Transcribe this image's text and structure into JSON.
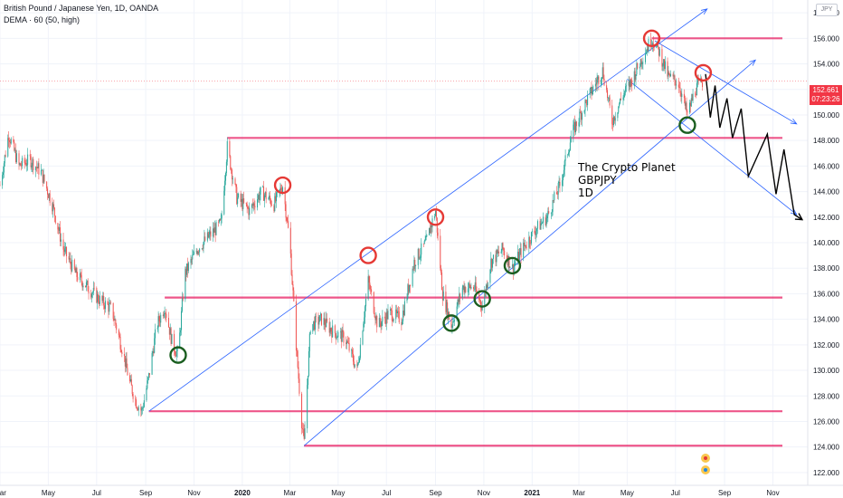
{
  "header": {
    "title": "British Pound / Japanese Yen, 1D, OANDA",
    "indicator": "DEMA · 60 (50, high)"
  },
  "currency_label": "JPY",
  "price_tag": {
    "price": "152.661",
    "countdown": "07:23:26"
  },
  "annotation": {
    "line1": "The Crypto Planet",
    "line2": "GBPJPY",
    "line3": "1D"
  },
  "colors": {
    "candle_up": "#26a69a",
    "candle_down": "#ef5350",
    "channel": "#2962ff",
    "support_resistance": "#e91e63",
    "top_circle": "#e53935",
    "bottom_circle": "#1b5e20",
    "projection": "#000000"
  },
  "chart_data": {
    "type": "candlestick",
    "y_axis": {
      "range": [
        121,
        159
      ],
      "ticks": [
        "122.000",
        "124.000",
        "126.000",
        "128.000",
        "130.000",
        "132.000",
        "134.000",
        "136.000",
        "138.000",
        "140.000",
        "142.000",
        "144.000",
        "146.000",
        "148.000",
        "150.000",
        "152.000",
        "154.000",
        "156.000",
        "158.000"
      ]
    },
    "x_axis": {
      "range": [
        "2019-03-01",
        "2021-12-15"
      ],
      "ticks": [
        {
          "label": "Mar",
          "date": "2019-03-01"
        },
        {
          "label": "May",
          "date": "2019-05-01"
        },
        {
          "label": "Jul",
          "date": "2019-07-01"
        },
        {
          "label": "Sep",
          "date": "2019-09-01"
        },
        {
          "label": "Nov",
          "date": "2019-11-01"
        },
        {
          "label": "2020",
          "date": "2020-01-01",
          "bold": true
        },
        {
          "label": "Mar",
          "date": "2020-03-01"
        },
        {
          "label": "May",
          "date": "2020-05-01"
        },
        {
          "label": "Jul",
          "date": "2020-07-01"
        },
        {
          "label": "Sep",
          "date": "2020-09-01"
        },
        {
          "label": "Nov",
          "date": "2020-11-01"
        },
        {
          "label": "2021",
          "date": "2021-01-01",
          "bold": true
        },
        {
          "label": "Mar",
          "date": "2021-03-01"
        },
        {
          "label": "May",
          "date": "2021-05-01"
        },
        {
          "label": "Jul",
          "date": "2021-07-01"
        },
        {
          "label": "Sep",
          "date": "2021-09-01"
        },
        {
          "label": "Nov",
          "date": "2021-11-01"
        }
      ]
    },
    "price_path": [
      [
        "2019-03-01",
        144.5
      ],
      [
        "2019-03-12",
        148.5
      ],
      [
        "2019-03-25",
        146.0
      ],
      [
        "2019-04-08",
        146.5
      ],
      [
        "2019-04-22",
        145.5
      ],
      [
        "2019-05-06",
        143.0
      ],
      [
        "2019-05-20",
        139.5
      ],
      [
        "2019-06-05",
        137.5
      ],
      [
        "2019-06-20",
        136.5
      ],
      [
        "2019-07-05",
        135.5
      ],
      [
        "2019-07-20",
        134.8
      ],
      [
        "2019-08-03",
        131.5
      ],
      [
        "2019-08-12",
        129.0
      ],
      [
        "2019-08-20",
        127.5
      ],
      [
        "2019-08-27",
        126.8
      ],
      [
        "2019-09-05",
        129.5
      ],
      [
        "2019-09-15",
        133.5
      ],
      [
        "2019-09-25",
        135.0
      ],
      [
        "2019-10-05",
        132.0
      ],
      [
        "2019-10-12",
        131.2
      ],
      [
        "2019-10-20",
        137.5
      ],
      [
        "2019-11-05",
        139.5
      ],
      [
        "2019-11-20",
        140.5
      ],
      [
        "2019-12-05",
        141.5
      ],
      [
        "2019-12-13",
        147.5
      ],
      [
        "2019-12-25",
        143.5
      ],
      [
        "2020-01-10",
        142.5
      ],
      [
        "2020-01-25",
        144.0
      ],
      [
        "2020-02-10",
        143.0
      ],
      [
        "2020-02-21",
        144.5
      ],
      [
        "2020-03-01",
        140.0
      ],
      [
        "2020-03-09",
        132.0
      ],
      [
        "2020-03-16",
        126.0
      ],
      [
        "2020-03-19",
        124.3
      ],
      [
        "2020-03-27",
        133.5
      ],
      [
        "2020-04-10",
        134.0
      ],
      [
        "2020-04-25",
        133.0
      ],
      [
        "2020-05-10",
        132.5
      ],
      [
        "2020-05-25",
        130.0
      ],
      [
        "2020-06-08",
        137.0
      ],
      [
        "2020-06-20",
        133.5
      ],
      [
        "2020-07-05",
        134.5
      ],
      [
        "2020-07-20",
        134.0
      ],
      [
        "2020-08-05",
        138.5
      ],
      [
        "2020-08-20",
        140.0
      ],
      [
        "2020-09-01",
        142.5
      ],
      [
        "2020-09-10",
        136.0
      ],
      [
        "2020-09-21",
        133.5
      ],
      [
        "2020-10-05",
        136.5
      ],
      [
        "2020-10-20",
        136.5
      ],
      [
        "2020-10-30",
        135.0
      ],
      [
        "2020-11-10",
        138.5
      ],
      [
        "2020-11-25",
        139.5
      ],
      [
        "2020-12-07",
        138.0
      ],
      [
        "2020-12-20",
        139.5
      ],
      [
        "2021-01-05",
        141.0
      ],
      [
        "2021-01-20",
        142.0
      ],
      [
        "2021-02-05",
        144.5
      ],
      [
        "2021-02-20",
        148.5
      ],
      [
        "2021-03-10",
        151.0
      ],
      [
        "2021-03-31",
        153.5
      ],
      [
        "2021-04-12",
        149.5
      ],
      [
        "2021-04-25",
        151.5
      ],
      [
        "2021-05-05",
        152.5
      ],
      [
        "2021-05-20",
        154.5
      ],
      [
        "2021-06-01",
        156.0
      ],
      [
        "2021-06-10",
        155.0
      ],
      [
        "2021-06-22",
        153.0
      ],
      [
        "2021-07-05",
        152.5
      ],
      [
        "2021-07-16",
        150.0
      ],
      [
        "2021-07-26",
        152.0
      ],
      [
        "2021-08-05",
        152.661
      ]
    ],
    "horizontal_levels": [
      {
        "price": 156.0,
        "from": "2021-06-01"
      },
      {
        "price": 148.2,
        "from": "2019-12-13"
      },
      {
        "price": 135.7,
        "from": "2019-09-25"
      },
      {
        "price": 126.8,
        "from": "2019-09-05"
      },
      {
        "price": 124.1,
        "from": "2020-03-19"
      }
    ],
    "trend_lines": [
      {
        "name": "upper-channel",
        "from": [
          "2019-09-05",
          126.8
        ],
        "to": [
          "2021-08-10",
          158.3
        ]
      },
      {
        "name": "lower-channel",
        "from": [
          "2020-03-19",
          124.1
        ],
        "to": [
          "2021-10-10",
          154.3
        ]
      },
      {
        "name": "upper-channel-2",
        "from": [
          "2021-06-05",
          155.8
        ],
        "to": [
          "2021-12-01",
          149.3
        ]
      },
      {
        "name": "lower-descend",
        "from": [
          "2021-05-01",
          152.8
        ],
        "to": [
          "2021-12-01",
          142.2
        ]
      }
    ],
    "top_circles": [
      [
        "2020-02-21",
        144.5
      ],
      [
        "2020-06-08",
        139.0
      ],
      [
        "2020-09-01",
        142.0
      ],
      [
        "2021-06-01",
        156.0
      ],
      [
        "2021-08-05",
        153.3
      ]
    ],
    "bottom_circles": [
      [
        "2019-10-12",
        131.2
      ],
      [
        "2020-09-21",
        133.7
      ],
      [
        "2020-10-30",
        135.6
      ],
      [
        "2020-12-07",
        138.2
      ],
      [
        "2021-07-16",
        149.2
      ]
    ],
    "projection_path": [
      [
        "2021-08-08",
        153.2
      ],
      [
        "2021-08-14",
        149.8
      ],
      [
        "2021-08-20",
        152.3
      ],
      [
        "2021-08-26",
        149.0
      ],
      [
        "2021-09-04",
        151.3
      ],
      [
        "2021-09-11",
        148.2
      ],
      [
        "2021-09-22",
        150.5
      ],
      [
        "2021-10-01",
        145.2
      ],
      [
        "2021-10-25",
        148.5
      ],
      [
        "2021-11-05",
        143.8
      ],
      [
        "2021-11-15",
        147.3
      ],
      [
        "2021-11-28",
        142.2
      ],
      [
        "2021-12-08",
        141.8
      ]
    ]
  }
}
